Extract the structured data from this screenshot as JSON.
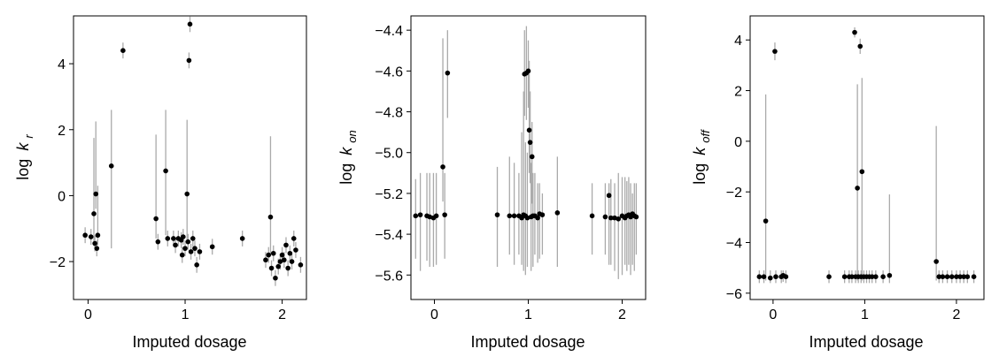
{
  "colors": {
    "point": "#000000",
    "errorbar": "#aaaaaa",
    "axis": "#000000"
  },
  "chart_data": [
    {
      "type": "scatter",
      "xlabel": "Imputed dosage",
      "ylabel_main": "log",
      "ylabel_sym": "k",
      "ylabel_sub": "r",
      "xlim": [
        -0.15,
        2.25
      ],
      "ylim": [
        -3.15,
        5.45
      ],
      "xticks": [
        0,
        1,
        2
      ],
      "yticks": [
        -2,
        0,
        2,
        4
      ],
      "xtick_labels": [
        "0",
        "1",
        "2"
      ],
      "ytick_labels": [
        "−2",
        "0",
        "2",
        "4"
      ],
      "points": [
        {
          "x": -0.03,
          "y": -1.2
        },
        {
          "x": 0.03,
          "y": -1.25
        },
        {
          "x": 0.06,
          "y": -0.55,
          "lo": -1.5,
          "hi": 1.75
        },
        {
          "x": 0.07,
          "y": -1.45
        },
        {
          "x": 0.08,
          "y": 0.05,
          "lo": -0.4,
          "hi": 2.25
        },
        {
          "x": 0.09,
          "y": -1.6
        },
        {
          "x": 0.1,
          "y": -1.2,
          "lo": -1.5,
          "hi": 0.3
        },
        {
          "x": 0.24,
          "y": 0.9,
          "lo": -1.6,
          "hi": 2.6
        },
        {
          "x": 0.36,
          "y": 4.4
        },
        {
          "x": 0.7,
          "y": -0.7,
          "lo": -1.3,
          "hi": 1.85
        },
        {
          "x": 0.72,
          "y": -1.4
        },
        {
          "x": 0.8,
          "y": 0.75,
          "lo": -1.2,
          "hi": 2.6
        },
        {
          "x": 0.82,
          "y": -1.3
        },
        {
          "x": 0.88,
          "y": -1.3
        },
        {
          "x": 0.9,
          "y": -1.5
        },
        {
          "x": 0.93,
          "y": -1.3
        },
        {
          "x": 0.96,
          "y": -1.35
        },
        {
          "x": 0.97,
          "y": -1.8
        },
        {
          "x": 0.98,
          "y": -1.25
        },
        {
          "x": 1.0,
          "y": -1.6
        },
        {
          "x": 1.02,
          "y": 0.05,
          "lo": -1.4,
          "hi": 2.3
        },
        {
          "x": 1.03,
          "y": -1.4
        },
        {
          "x": 1.04,
          "y": 4.1
        },
        {
          "x": 1.05,
          "y": 5.2
        },
        {
          "x": 1.06,
          "y": -1.7
        },
        {
          "x": 1.08,
          "y": -1.3
        },
        {
          "x": 1.1,
          "y": -1.6
        },
        {
          "x": 1.12,
          "y": -2.1
        },
        {
          "x": 1.15,
          "y": -1.7
        },
        {
          "x": 1.28,
          "y": -1.55
        },
        {
          "x": 1.59,
          "y": -1.3
        },
        {
          "x": 1.83,
          "y": -1.95
        },
        {
          "x": 1.86,
          "y": -1.8
        },
        {
          "x": 1.88,
          "y": -0.65,
          "lo": -1.8,
          "hi": 1.8
        },
        {
          "x": 1.89,
          "y": -2.2
        },
        {
          "x": 1.91,
          "y": -1.75
        },
        {
          "x": 1.93,
          "y": -2.5
        },
        {
          "x": 1.96,
          "y": -2.15
        },
        {
          "x": 1.98,
          "y": -2.0
        },
        {
          "x": 2.0,
          "y": -1.8
        },
        {
          "x": 2.02,
          "y": -1.95
        },
        {
          "x": 2.04,
          "y": -1.5
        },
        {
          "x": 2.06,
          "y": -2.2
        },
        {
          "x": 2.08,
          "y": -1.75
        },
        {
          "x": 2.1,
          "y": -2.0
        },
        {
          "x": 2.12,
          "y": -1.3
        },
        {
          "x": 2.14,
          "y": -1.65
        },
        {
          "x": 2.19,
          "y": -2.1
        }
      ]
    },
    {
      "type": "scatter",
      "xlabel": "Imputed dosage",
      "ylabel_main": "log",
      "ylabel_sym": "k",
      "ylabel_sub": "on",
      "xlim": [
        -0.25,
        2.25
      ],
      "ylim": [
        -5.72,
        -4.33
      ],
      "xticks": [
        0,
        1,
        2
      ],
      "yticks": [
        -5.6,
        -5.4,
        -5.2,
        -5.0,
        -4.8,
        -4.6,
        -4.4
      ],
      "xtick_labels": [
        "0",
        "1",
        "2"
      ],
      "ytick_labels": [
        "−5.6",
        "−5.4",
        "−5.2",
        "−5.0",
        "−4.8",
        "−4.6",
        "−4.4"
      ],
      "points": [
        {
          "x": -0.2,
          "y": -5.31,
          "lo": -5.52,
          "hi": -5.13
        },
        {
          "x": -0.15,
          "y": -5.305,
          "lo": -5.58,
          "hi": -5.1
        },
        {
          "x": -0.08,
          "y": -5.31,
          "lo": -5.53,
          "hi": -5.1
        },
        {
          "x": -0.05,
          "y": -5.315,
          "lo": -5.56,
          "hi": -5.1
        },
        {
          "x": -0.01,
          "y": -5.32,
          "lo": -5.56,
          "hi": -5.1
        },
        {
          "x": 0.02,
          "y": -5.31,
          "lo": -5.55,
          "hi": -5.1
        },
        {
          "x": 0.09,
          "y": -5.07,
          "lo": -5.24,
          "hi": -4.44
        },
        {
          "x": 0.11,
          "y": -5.305,
          "lo": -5.52,
          "hi": -5.1
        },
        {
          "x": 0.14,
          "y": -4.61,
          "lo": -4.83,
          "hi": -4.4
        },
        {
          "x": 0.67,
          "y": -5.305,
          "lo": -5.56,
          "hi": -5.07
        },
        {
          "x": 0.8,
          "y": -5.31,
          "lo": -5.5,
          "hi": -5.02
        },
        {
          "x": 0.85,
          "y": -5.31,
          "lo": -5.55,
          "hi": -5.05
        },
        {
          "x": 0.9,
          "y": -5.31,
          "lo": -5.5,
          "hi": -5.1
        },
        {
          "x": 0.93,
          "y": -5.32,
          "lo": -5.55,
          "hi": -4.9
        },
        {
          "x": 0.95,
          "y": -5.305,
          "lo": -5.58,
          "hi": -4.7
        },
        {
          "x": 0.96,
          "y": -4.615,
          "lo": -4.82,
          "hi": -4.4
        },
        {
          "x": 0.97,
          "y": -5.31,
          "lo": -5.6,
          "hi": -4.95
        },
        {
          "x": 0.98,
          "y": -4.61,
          "lo": -4.84,
          "hi": -4.38
        },
        {
          "x": 0.99,
          "y": -5.32,
          "lo": -5.56,
          "hi": -5.0
        },
        {
          "x": 1.0,
          "y": -4.6,
          "lo": -4.78,
          "hi": -4.45
        },
        {
          "x": 1.01,
          "y": -4.89,
          "lo": -5.1,
          "hi": -4.55
        },
        {
          "x": 1.02,
          "y": -4.95,
          "lo": -5.15,
          "hi": -4.7
        },
        {
          "x": 1.03,
          "y": -5.315,
          "lo": -5.58,
          "hi": -5.05
        },
        {
          "x": 1.04,
          "y": -5.02,
          "lo": -5.25,
          "hi": -4.85
        },
        {
          "x": 1.05,
          "y": -5.31,
          "lo": -5.56,
          "hi": -5.1
        },
        {
          "x": 1.07,
          "y": -5.31,
          "lo": -5.5,
          "hi": -5.1
        },
        {
          "x": 1.1,
          "y": -5.32,
          "lo": -5.54,
          "hi": -5.15
        },
        {
          "x": 1.12,
          "y": -5.3,
          "lo": -5.52,
          "hi": -5.15
        },
        {
          "x": 1.15,
          "y": -5.305,
          "lo": -5.5,
          "hi": -5.2
        },
        {
          "x": 1.31,
          "y": -5.295,
          "lo": -5.56,
          "hi": -5.02
        },
        {
          "x": 1.68,
          "y": -5.31,
          "lo": -5.5,
          "hi": -5.15
        },
        {
          "x": 1.82,
          "y": -5.315,
          "lo": -5.5,
          "hi": -5.15
        },
        {
          "x": 1.86,
          "y": -5.21,
          "lo": -5.55,
          "hi": -5.15
        },
        {
          "x": 1.88,
          "y": -5.32,
          "lo": -5.55,
          "hi": -5.13
        },
        {
          "x": 1.92,
          "y": -5.32,
          "lo": -5.58,
          "hi": -5.15
        },
        {
          "x": 1.96,
          "y": -5.325,
          "lo": -5.62,
          "hi": -5.1
        },
        {
          "x": 2.0,
          "y": -5.31,
          "lo": -5.6,
          "hi": -5.12
        },
        {
          "x": 2.03,
          "y": -5.32,
          "lo": -5.55,
          "hi": -5.12
        },
        {
          "x": 2.05,
          "y": -5.31,
          "lo": -5.58,
          "hi": -5.14
        },
        {
          "x": 2.07,
          "y": -5.305,
          "lo": -5.55,
          "hi": -5.12
        },
        {
          "x": 2.09,
          "y": -5.315,
          "lo": -5.6,
          "hi": -5.15
        },
        {
          "x": 2.11,
          "y": -5.3,
          "lo": -5.55,
          "hi": -5.2
        },
        {
          "x": 2.13,
          "y": -5.31,
          "lo": -5.58,
          "hi": -5.15
        },
        {
          "x": 2.15,
          "y": -5.315,
          "lo": -5.5,
          "hi": -5.15
        }
      ]
    },
    {
      "type": "scatter",
      "xlabel": "Imputed dosage",
      "ylabel_main": "log",
      "ylabel_sym": "k",
      "ylabel_sub": "off",
      "xlim": [
        -0.25,
        2.3
      ],
      "ylim": [
        -6.25,
        4.95
      ],
      "xticks": [
        0,
        1,
        2
      ],
      "yticks": [
        -6,
        -4,
        -2,
        0,
        2,
        4
      ],
      "xtick_labels": [
        "0",
        "1",
        "2"
      ],
      "ytick_labels": [
        "−6",
        "−4",
        "−2",
        "0",
        "2",
        "4"
      ],
      "points": [
        {
          "x": -0.15,
          "y": -5.35,
          "lo": -5.6,
          "hi": -5.1
        },
        {
          "x": -0.1,
          "y": -5.35,
          "lo": -5.6,
          "hi": -5.1
        },
        {
          "x": -0.08,
          "y": -3.15,
          "lo": -5.5,
          "hi": 1.85
        },
        {
          "x": -0.03,
          "y": -5.4,
          "lo": -5.6,
          "hi": -5.1
        },
        {
          "x": 0.02,
          "y": 3.55,
          "lo": 3.2,
          "hi": 3.9
        },
        {
          "x": 0.03,
          "y": -5.35,
          "lo": -5.6,
          "hi": -5.1
        },
        {
          "x": 0.09,
          "y": -5.35,
          "lo": -5.6,
          "hi": -5.1
        },
        {
          "x": 0.11,
          "y": -5.3,
          "lo": -5.55,
          "hi": -5.1
        },
        {
          "x": 0.14,
          "y": -5.35,
          "lo": -5.6,
          "hi": -5.1
        },
        {
          "x": 0.61,
          "y": -5.35,
          "lo": -5.6,
          "hi": -5.1
        },
        {
          "x": 0.78,
          "y": -5.35,
          "lo": -5.6,
          "hi": -5.1
        },
        {
          "x": 0.83,
          "y": -5.35,
          "lo": -5.6,
          "hi": -5.1
        },
        {
          "x": 0.86,
          "y": -5.35,
          "lo": -5.6,
          "hi": -5.1
        },
        {
          "x": 0.89,
          "y": 4.3,
          "lo": 4.1,
          "hi": 4.5
        },
        {
          "x": 0.9,
          "y": -5.35,
          "lo": -5.6,
          "hi": -5.1
        },
        {
          "x": 0.92,
          "y": -1.85,
          "lo": -5.5,
          "hi": 2.25
        },
        {
          "x": 0.93,
          "y": -5.35,
          "lo": -5.6,
          "hi": -5.1
        },
        {
          "x": 0.95,
          "y": 3.75,
          "lo": 3.45,
          "hi": 4.05
        },
        {
          "x": 0.96,
          "y": -5.35,
          "lo": -5.6,
          "hi": -5.1
        },
        {
          "x": 0.97,
          "y": -1.2,
          "lo": -5.5,
          "hi": 2.5
        },
        {
          "x": 0.99,
          "y": -5.35,
          "lo": -5.6,
          "hi": -5.1
        },
        {
          "x": 1.02,
          "y": -5.35,
          "lo": -5.6,
          "hi": -5.1
        },
        {
          "x": 1.05,
          "y": -5.35,
          "lo": -5.6,
          "hi": -5.1
        },
        {
          "x": 1.08,
          "y": -5.35,
          "lo": -5.6,
          "hi": -5.1
        },
        {
          "x": 1.12,
          "y": -5.35,
          "lo": -5.6,
          "hi": -5.1
        },
        {
          "x": 1.2,
          "y": -5.35,
          "lo": -5.6,
          "hi": -5.1
        },
        {
          "x": 1.27,
          "y": -5.3,
          "lo": -5.6,
          "hi": -2.1
        },
        {
          "x": 1.78,
          "y": -4.75,
          "lo": -5.5,
          "hi": 0.6
        },
        {
          "x": 1.81,
          "y": -5.35,
          "lo": -5.6,
          "hi": -5.1
        },
        {
          "x": 1.85,
          "y": -5.35,
          "lo": -5.6,
          "hi": -5.1
        },
        {
          "x": 1.9,
          "y": -5.35,
          "lo": -5.6,
          "hi": -5.1
        },
        {
          "x": 1.95,
          "y": -5.35,
          "lo": -5.6,
          "hi": -5.1
        },
        {
          "x": 2.0,
          "y": -5.35,
          "lo": -5.6,
          "hi": -5.1
        },
        {
          "x": 2.04,
          "y": -5.35,
          "lo": -5.6,
          "hi": -5.1
        },
        {
          "x": 2.08,
          "y": -5.35,
          "lo": -5.6,
          "hi": -5.1
        },
        {
          "x": 2.12,
          "y": -5.35,
          "lo": -5.6,
          "hi": -5.1
        },
        {
          "x": 2.19,
          "y": -5.35,
          "lo": -5.6,
          "hi": -5.1
        }
      ]
    }
  ]
}
